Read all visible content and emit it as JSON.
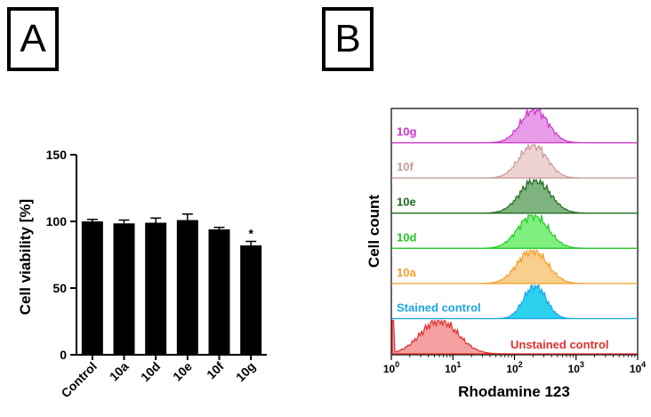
{
  "panels": {
    "a_label": "A",
    "b_label": "B"
  },
  "chart_data": [
    {
      "type": "bar",
      "title": "",
      "xlabel": "",
      "ylabel": "Cell viability [%]",
      "categories": [
        "Control",
        "10a",
        "10d",
        "10e",
        "10f",
        "10g"
      ],
      "values": [
        100,
        98.5,
        99,
        101,
        94,
        82
      ],
      "errors": [
        1.5,
        2.5,
        3.5,
        4.5,
        1.5,
        3
      ],
      "annotations": [
        "",
        "",
        "",
        "",
        "",
        "*"
      ],
      "ylim": [
        0,
        150
      ],
      "yticks": [
        0,
        50,
        100,
        150
      ],
      "bar_color": "#000000"
    },
    {
      "type": "histogram-overlay",
      "title": "",
      "xlabel": "Rhodamine 123",
      "ylabel": "Cell count",
      "x_scale": "log",
      "xlim": [
        1,
        10000
      ],
      "xticks": [
        {
          "value": 1,
          "base": "10",
          "exp": "0"
        },
        {
          "value": 10,
          "base": "10",
          "exp": "1"
        },
        {
          "value": 100,
          "base": "10",
          "exp": "2"
        },
        {
          "value": 1000,
          "base": "10",
          "exp": "3"
        },
        {
          "value": 10000,
          "base": "10",
          "exp": "4"
        }
      ],
      "series": [
        {
          "name": "10g",
          "color": "#cc33cc",
          "fill": "#e69ce6",
          "peak": 210,
          "width": 0.22
        },
        {
          "name": "10f",
          "color": "#c99a9a",
          "fill": "#efd3d3",
          "peak": 200,
          "width": 0.22
        },
        {
          "name": "10e",
          "color": "#1f6b1f",
          "fill": "#7fb37f",
          "peak": 215,
          "width": 0.24
        },
        {
          "name": "10d",
          "color": "#22cc22",
          "fill": "#7ff07f",
          "peak": 200,
          "width": 0.24
        },
        {
          "name": "10a",
          "color": "#f0a030",
          "fill": "#f8cf8c",
          "peak": 195,
          "width": 0.24
        },
        {
          "name": "Stained control",
          "color": "#1aa6e8",
          "fill": "#2ed0f0",
          "peak": 215,
          "width": 0.18
        },
        {
          "name": "Unstained control",
          "color": "#e03030",
          "fill": "#f4a0a0",
          "peak": 6,
          "width": 0.3
        }
      ]
    }
  ]
}
